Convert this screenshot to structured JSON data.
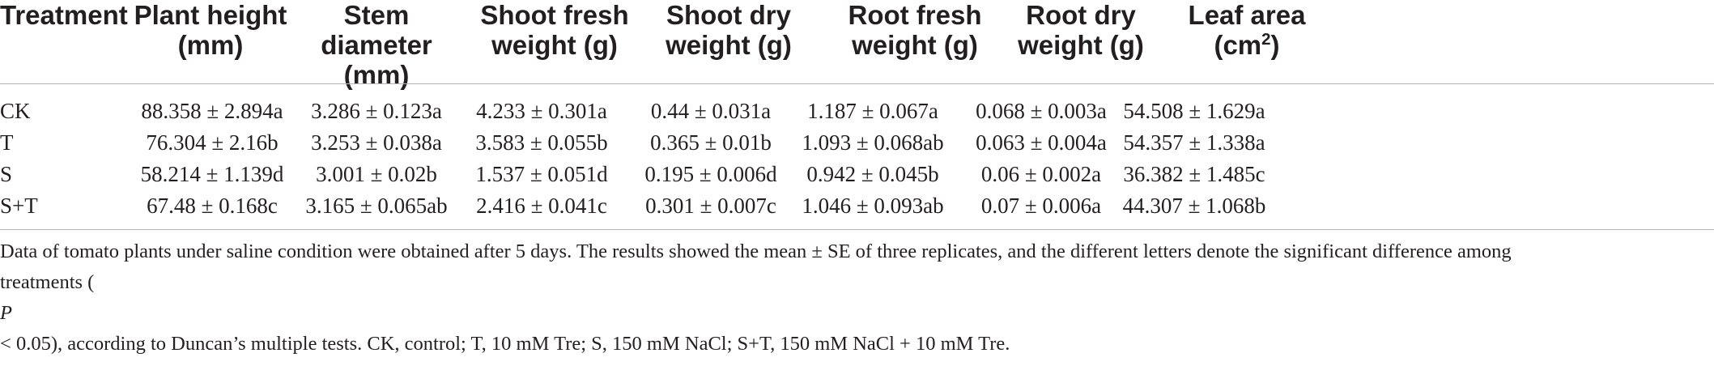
{
  "table": {
    "headers": [
      [
        "Treatment"
      ],
      [
        "Plant height",
        "(mm)"
      ],
      [
        "Stem",
        "diameter",
        "(mm)"
      ],
      [
        "Shoot fresh",
        "weight (g)"
      ],
      [
        "Shoot dry",
        "weight (g)"
      ],
      [
        "Root fresh",
        "weight (g)"
      ],
      [
        "Root dry",
        "weight (g)"
      ],
      [
        "Leaf area",
        "(cm",
        "2",
        ")"
      ]
    ],
    "rows": [
      [
        "CK",
        "88.358 ± 2.894a",
        "3.286 ± 0.123a",
        "4.233 ± 0.301a",
        "0.44 ± 0.031a",
        "1.187 ± 0.067a",
        "0.068 ± 0.003a",
        "54.508 ± 1.629a"
      ],
      [
        "T",
        "76.304 ± 2.16b",
        "3.253 ± 0.038a",
        "3.583 ± 0.055b",
        "0.365 ± 0.01b",
        "1.093 ± 0.068ab",
        "0.063 ± 0.004a",
        "54.357 ± 1.338a"
      ],
      [
        "S",
        "58.214 ± 1.139d",
        "3.001 ± 0.02b",
        "1.537 ± 0.051d",
        "0.195 ± 0.006d",
        "0.942 ± 0.045b",
        "0.06 ± 0.002a",
        "36.382 ± 1.485c"
      ],
      [
        "S+T",
        "67.48 ± 0.168c",
        "3.165 ± 0.065ab",
        "2.416 ± 0.041c",
        "0.301 ± 0.007c",
        "1.046 ± 0.093ab",
        "0.07 ± 0.006a",
        "44.307 ± 1.068b"
      ]
    ]
  },
  "footnote": {
    "line1": "Data of tomato plants under saline condition were obtained after 5 days. The results showed the mean ± SE of three replicates, and the different letters denote the significant difference among",
    "line2_pre": "treatments (",
    "line2_p": "P",
    "line2_post": " < 0.05), according to Duncan’s multiple tests. CK, control; T, 10 mM Tre; S, 150 mM NaCl; S+T, 150 mM NaCl + 10 mM Tre."
  }
}
